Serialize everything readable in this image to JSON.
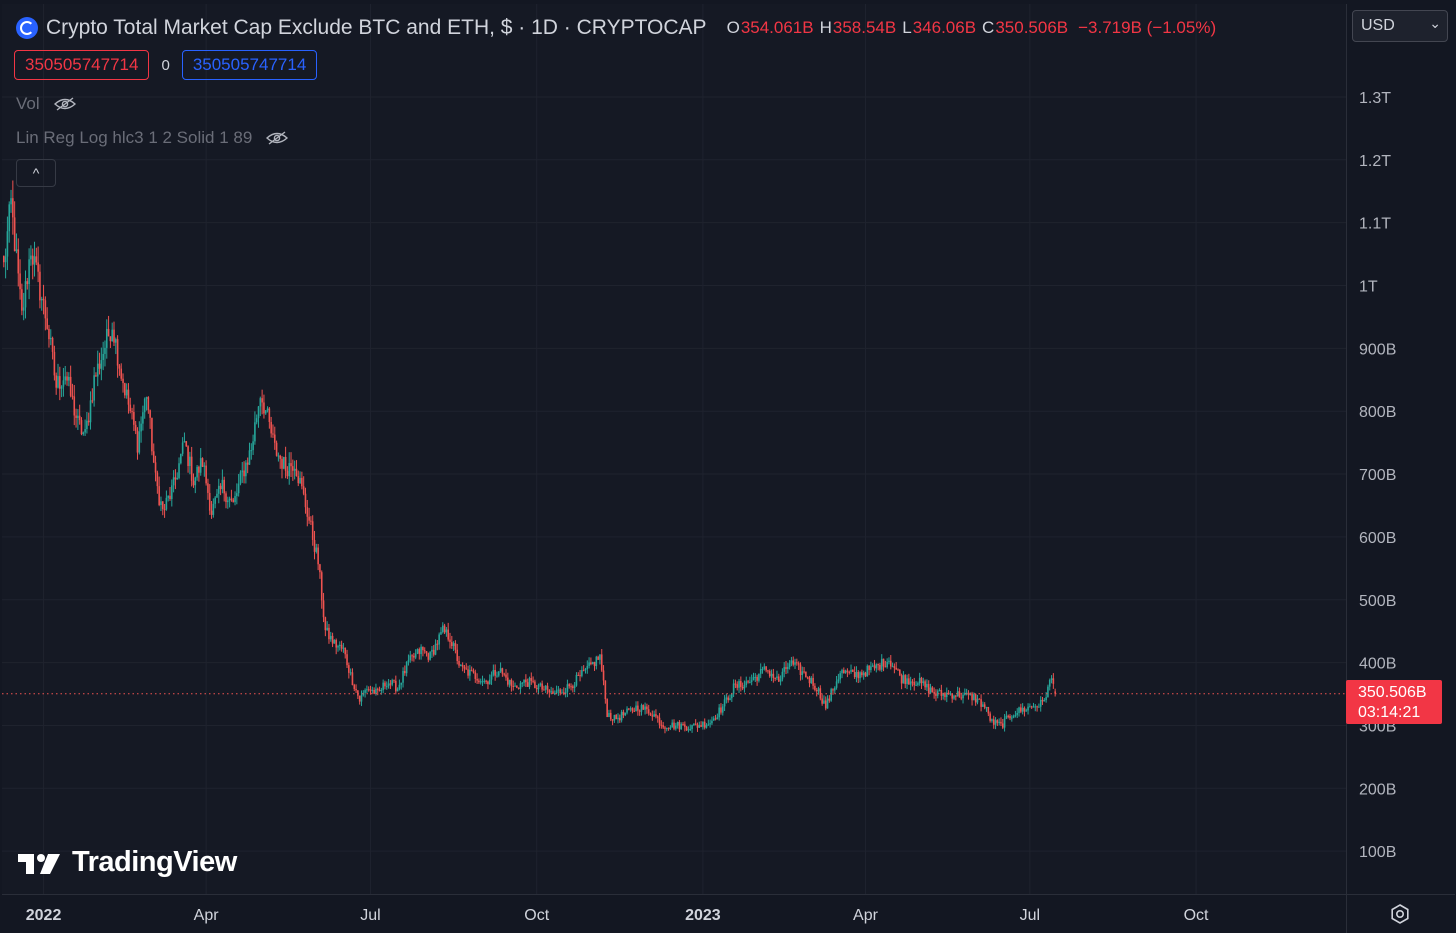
{
  "header": {
    "title": "Crypto Total Market Cap Exclude BTC and ETH, $ · 1D · CRYPTOCAP",
    "ohlc": {
      "o_label": "O",
      "o_value": "354.061B",
      "h_label": "H",
      "h_value": "358.54B",
      "l_label": "L",
      "l_value": "346.06B",
      "c_label": "C",
      "c_value": "350.506B",
      "change": "−3.719B (−1.05%)"
    },
    "value_box_red": "350505747714",
    "value_box_zero": "0",
    "value_box_blue": "350505747714",
    "indicator_vol": "Vol",
    "indicator_linreg": "Lin Reg Log hlc3 1 2 Solid 1 89",
    "collapse_glyph": "^"
  },
  "currency_select": {
    "value": "USD",
    "chevron": "⌄"
  },
  "price_tag": {
    "price": "350.506B",
    "countdown": "03:14:21"
  },
  "watermark": "TradingView",
  "colors": {
    "background": "#131722",
    "pane": "#151924",
    "grid": "#1f232e",
    "up": "#26a69a",
    "down": "#ef5350",
    "accent_red": "#f23645",
    "accent_blue": "#2962ff",
    "axis_text": "#b2b5be"
  },
  "icons": {
    "symbol_logo": "cryptocap-logo-icon",
    "eye_hidden": "eye-crossed-icon",
    "settings": "gear-icon"
  },
  "chart_data": {
    "type": "candlestick",
    "title": "Crypto Total Market Cap Exclude BTC and ETH, $ · 1D · CRYPTOCAP",
    "interval": "1D",
    "y_unit": "$",
    "ylim": [
      0,
      1400000000000
    ],
    "y_ticks": [
      {
        "value": 100000000000,
        "label": "100B"
      },
      {
        "value": 200000000000,
        "label": "200B"
      },
      {
        "value": 300000000000,
        "label": "300B"
      },
      {
        "value": 400000000000,
        "label": "400B"
      },
      {
        "value": 500000000000,
        "label": "500B"
      },
      {
        "value": 600000000000,
        "label": "600B"
      },
      {
        "value": 700000000000,
        "label": "700B"
      },
      {
        "value": 800000000000,
        "label": "800B"
      },
      {
        "value": 900000000000,
        "label": "900B"
      },
      {
        "value": 1000000000000,
        "label": "1T"
      },
      {
        "value": 1100000000000,
        "label": "1.1T"
      },
      {
        "value": 1200000000000,
        "label": "1.2T"
      },
      {
        "value": 1300000000000,
        "label": "1.3T"
      }
    ],
    "xlim": [
      "2021-12-09",
      "2023-12-23"
    ],
    "x_ticks": [
      {
        "date": "2022-01-01",
        "label": "2022",
        "bold": true
      },
      {
        "date": "2022-04-01",
        "label": "Apr"
      },
      {
        "date": "2022-07-01",
        "label": "Jul"
      },
      {
        "date": "2022-10-01",
        "label": "Oct"
      },
      {
        "date": "2023-01-01",
        "label": "2023",
        "bold": true
      },
      {
        "date": "2023-04-01",
        "label": "Apr"
      },
      {
        "date": "2023-07-01",
        "label": "Jul"
      },
      {
        "date": "2023-10-01",
        "label": "Oct"
      }
    ],
    "grid": true,
    "last_close": 350506000000,
    "last_date": "2023-07-15",
    "series": [
      {
        "anchors": [
          {
            "date": "2021-12-10",
            "close": 1030000000000
          },
          {
            "date": "2021-12-14",
            "close": 1130000000000
          },
          {
            "date": "2021-12-20",
            "close": 950000000000
          },
          {
            "date": "2021-12-25",
            "close": 1060000000000
          },
          {
            "date": "2022-01-03",
            "close": 940000000000
          },
          {
            "date": "2022-01-08",
            "close": 840000000000
          },
          {
            "date": "2022-01-13",
            "close": 860000000000
          },
          {
            "date": "2022-01-20",
            "close": 780000000000
          },
          {
            "date": "2022-01-24",
            "close": 760000000000
          },
          {
            "date": "2022-01-29",
            "close": 850000000000
          },
          {
            "date": "2022-02-08",
            "close": 940000000000
          },
          {
            "date": "2022-02-13",
            "close": 860000000000
          },
          {
            "date": "2022-02-22",
            "close": 750000000000
          },
          {
            "date": "2022-02-27",
            "close": 830000000000
          },
          {
            "date": "2022-03-04",
            "close": 690000000000
          },
          {
            "date": "2022-03-08",
            "close": 640000000000
          },
          {
            "date": "2022-03-14",
            "close": 680000000000
          },
          {
            "date": "2022-03-20",
            "close": 750000000000
          },
          {
            "date": "2022-03-25",
            "close": 690000000000
          },
          {
            "date": "2022-03-30",
            "close": 720000000000
          },
          {
            "date": "2022-04-04",
            "close": 640000000000
          },
          {
            "date": "2022-04-10",
            "close": 680000000000
          },
          {
            "date": "2022-04-16",
            "close": 650000000000
          },
          {
            "date": "2022-04-21",
            "close": 700000000000
          },
          {
            "date": "2022-04-26",
            "close": 740000000000
          },
          {
            "date": "2022-05-01",
            "close": 830000000000
          },
          {
            "date": "2022-05-04",
            "close": 800000000000
          },
          {
            "date": "2022-05-09",
            "close": 740000000000
          },
          {
            "date": "2022-05-15",
            "close": 710000000000
          },
          {
            "date": "2022-05-20",
            "close": 720000000000
          },
          {
            "date": "2022-05-27",
            "close": 640000000000
          },
          {
            "date": "2022-06-02",
            "close": 560000000000
          },
          {
            "date": "2022-06-06",
            "close": 450000000000
          },
          {
            "date": "2022-06-11",
            "close": 430000000000
          },
          {
            "date": "2022-06-16",
            "close": 420000000000
          },
          {
            "date": "2022-06-20",
            "close": 380000000000
          },
          {
            "date": "2022-06-25",
            "close": 340000000000
          },
          {
            "date": "2022-06-29",
            "close": 360000000000
          },
          {
            "date": "2022-07-05",
            "close": 350000000000
          },
          {
            "date": "2022-07-10",
            "close": 370000000000
          },
          {
            "date": "2022-07-16",
            "close": 360000000000
          },
          {
            "date": "2022-07-22",
            "close": 400000000000
          },
          {
            "date": "2022-07-29",
            "close": 420000000000
          },
          {
            "date": "2022-08-03",
            "close": 410000000000
          },
          {
            "date": "2022-08-10",
            "close": 450000000000
          },
          {
            "date": "2022-08-14",
            "close": 440000000000
          },
          {
            "date": "2022-08-20",
            "close": 390000000000
          },
          {
            "date": "2022-08-27",
            "close": 380000000000
          },
          {
            "date": "2022-09-03",
            "close": 370000000000
          },
          {
            "date": "2022-09-10",
            "close": 390000000000
          },
          {
            "date": "2022-09-18",
            "close": 360000000000
          },
          {
            "date": "2022-09-25",
            "close": 370000000000
          },
          {
            "date": "2022-10-03",
            "close": 360000000000
          },
          {
            "date": "2022-10-10",
            "close": 350000000000
          },
          {
            "date": "2022-10-18",
            "close": 360000000000
          },
          {
            "date": "2022-10-26",
            "close": 380000000000
          },
          {
            "date": "2022-11-05",
            "close": 410000000000
          },
          {
            "date": "2022-11-09",
            "close": 320000000000
          },
          {
            "date": "2022-11-13",
            "close": 310000000000
          },
          {
            "date": "2022-11-20",
            "close": 320000000000
          },
          {
            "date": "2022-11-26",
            "close": 330000000000
          },
          {
            "date": "2022-12-04",
            "close": 320000000000
          },
          {
            "date": "2022-12-10",
            "close": 300000000000
          },
          {
            "date": "2022-12-18",
            "close": 300000000000
          },
          {
            "date": "2022-12-26",
            "close": 298000000000
          },
          {
            "date": "2023-01-05",
            "close": 305000000000
          },
          {
            "date": "2023-01-12",
            "close": 330000000000
          },
          {
            "date": "2023-01-18",
            "close": 360000000000
          },
          {
            "date": "2023-01-27",
            "close": 370000000000
          },
          {
            "date": "2023-02-05",
            "close": 390000000000
          },
          {
            "date": "2023-02-12",
            "close": 370000000000
          },
          {
            "date": "2023-02-18",
            "close": 400000000000
          },
          {
            "date": "2023-02-27",
            "close": 380000000000
          },
          {
            "date": "2023-03-05",
            "close": 360000000000
          },
          {
            "date": "2023-03-10",
            "close": 330000000000
          },
          {
            "date": "2023-03-18",
            "close": 385000000000
          },
          {
            "date": "2023-03-26",
            "close": 380000000000
          },
          {
            "date": "2023-04-05",
            "close": 390000000000
          },
          {
            "date": "2023-04-14",
            "close": 405000000000
          },
          {
            "date": "2023-04-21",
            "close": 375000000000
          },
          {
            "date": "2023-04-30",
            "close": 370000000000
          },
          {
            "date": "2023-05-10",
            "close": 350000000000
          },
          {
            "date": "2023-05-20",
            "close": 350000000000
          },
          {
            "date": "2023-05-31",
            "close": 345000000000
          },
          {
            "date": "2023-06-06",
            "close": 330000000000
          },
          {
            "date": "2023-06-10",
            "close": 305000000000
          },
          {
            "date": "2023-06-15",
            "close": 300000000000
          },
          {
            "date": "2023-06-22",
            "close": 320000000000
          },
          {
            "date": "2023-07-02",
            "close": 330000000000
          },
          {
            "date": "2023-07-08",
            "close": 335000000000
          },
          {
            "date": "2023-07-13",
            "close": 375000000000
          },
          {
            "date": "2023-07-15",
            "close": 350506000000
          }
        ],
        "last_bar": {
          "date": "2023-07-15",
          "open": 354061000000,
          "high": 358540000000,
          "low": 346060000000,
          "close": 350506000000
        }
      }
    ]
  }
}
